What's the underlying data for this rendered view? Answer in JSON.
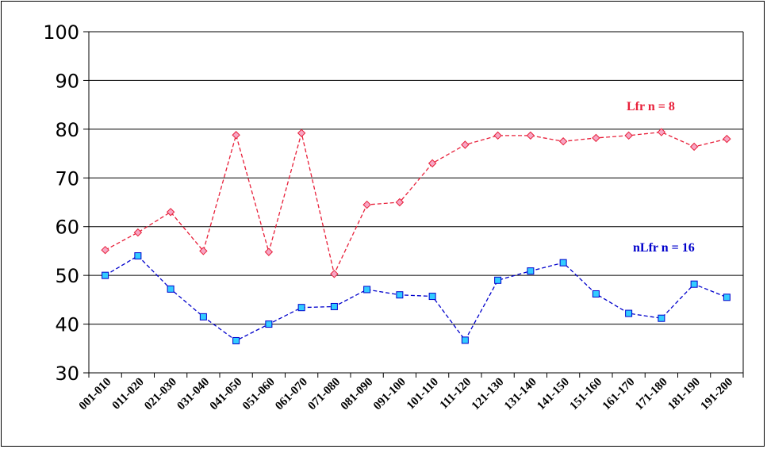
{
  "chart_data": {
    "type": "line",
    "title": "",
    "xlabel": "",
    "ylabel": "",
    "ylim": [
      30,
      100
    ],
    "yticks": [
      30,
      40,
      50,
      60,
      70,
      80,
      90,
      100
    ],
    "grid": "horizontal",
    "categories": [
      "001-010",
      "011-020",
      "021-030",
      "031-040",
      "041-050",
      "051-060",
      "061-070",
      "071-080",
      "081-090",
      "091-100",
      "101-110",
      "111-120",
      "121-130",
      "131-140",
      "141-150",
      "151-160",
      "161-170",
      "171-180",
      "181-190",
      "191-200"
    ],
    "series": [
      {
        "name": "Lfr n = 8",
        "color": "#e8203a",
        "marker": "diamond",
        "values": [
          55.2,
          58.8,
          63.0,
          55.0,
          78.8,
          54.8,
          79.2,
          50.3,
          64.5,
          65.0,
          73.0,
          76.8,
          78.7,
          78.7,
          77.5,
          78.2,
          78.7,
          79.4,
          76.4,
          78.0
        ]
      },
      {
        "name": "nLfr n = 16",
        "color": "#0000cc",
        "marker": "square",
        "values": [
          50.0,
          54.0,
          47.2,
          41.5,
          36.6,
          40.0,
          43.4,
          43.6,
          47.1,
          46.0,
          45.7,
          36.7,
          49.0,
          50.9,
          52.6,
          46.2,
          42.2,
          41.2,
          48.2,
          45.5
        ]
      }
    ]
  }
}
